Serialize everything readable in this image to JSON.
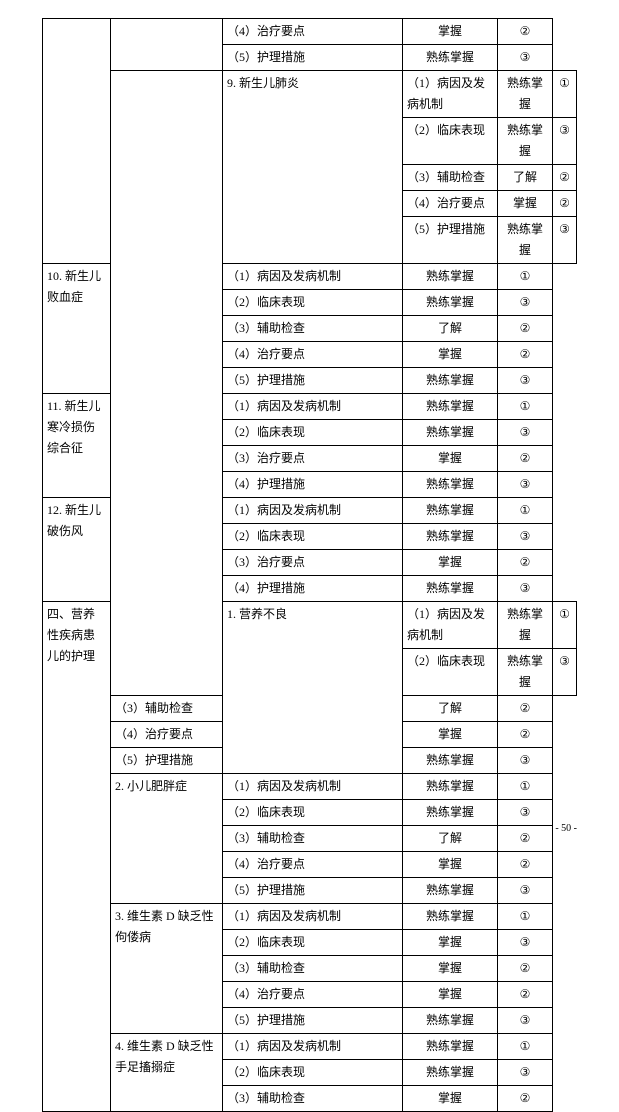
{
  "footer": "- 50 -",
  "table": {
    "rows": [
      {
        "c1": "",
        "c2": "",
        "c3": "（4）治疗要点",
        "c4": "掌握",
        "c5": "②",
        "startC1": true,
        "startC2": true,
        "spanC1": 7,
        "spanC2": 2
      },
      {
        "c3": "（5）护理措施",
        "c4": "熟练掌握",
        "c5": "③"
      },
      {
        "c2": "9. 新生儿肺炎",
        "c3": "（1）病因及发病机制",
        "c4": "熟练掌握",
        "c5": "①",
        "startC1": true,
        "spanC1": 20,
        "c1": "",
        "startC2": true,
        "spanC2": 5
      },
      {
        "c3": "（2）临床表现",
        "c4": "熟练掌握",
        "c5": "③"
      },
      {
        "c3": "（3）辅助检查",
        "c4": "了解",
        "c5": "②"
      },
      {
        "c3": "（4）治疗要点",
        "c4": "掌握",
        "c5": "②"
      },
      {
        "c3": "（5）护理措施",
        "c4": "熟练掌握",
        "c5": "③"
      },
      {
        "c2": "10. 新生儿败血症",
        "c3": "（1）病因及发病机制",
        "c4": "熟练掌握",
        "c5": "①",
        "startC2": true,
        "spanC2": 5
      },
      {
        "c3": "（2）临床表现",
        "c4": "熟练掌握",
        "c5": "③"
      },
      {
        "c3": "（3）辅助检查",
        "c4": "了解",
        "c5": "②"
      },
      {
        "c3": "（4）治疗要点",
        "c4": "掌握",
        "c5": "②"
      },
      {
        "c3": "（5）护理措施",
        "c4": "熟练掌握",
        "c5": "③"
      },
      {
        "c2": "11. 新生儿寒冷损伤综合征",
        "c3": "（1）病因及发病机制",
        "c4": "熟练掌握",
        "c5": "①",
        "startC2": true,
        "spanC2": 4
      },
      {
        "c3": "（2）临床表现",
        "c4": "熟练掌握",
        "c5": "③"
      },
      {
        "c3": "（3）治疗要点",
        "c4": "掌握",
        "c5": "②"
      },
      {
        "c3": "（4）护理措施",
        "c4": "熟练掌握",
        "c5": "③"
      },
      {
        "c2": "12. 新生儿破伤风",
        "c3": "（1）病因及发病机制",
        "c4": "熟练掌握",
        "c5": "①",
        "startC2": true,
        "spanC2": 4
      },
      {
        "c3": "（2）临床表现",
        "c4": "熟练掌握",
        "c5": "③"
      },
      {
        "c3": "（3）治疗要点",
        "c4": "掌握",
        "c5": "②"
      },
      {
        "c3": "（4）护理措施",
        "c4": "熟练掌握",
        "c5": "③"
      },
      {
        "c1": "四、营养性疾病患儿的护理",
        "c2": "1. 营养不良",
        "c3": "（1）病因及发病机制",
        "c4": "熟练掌握",
        "c5": "①",
        "startC1": true,
        "spanC1": 18,
        "startC2": true,
        "spanC2": 5
      },
      {
        "c3": "（2）临床表现",
        "c4": "熟练掌握",
        "c5": "③"
      },
      {
        "c3": "（3）辅助检查",
        "c4": "了解",
        "c5": "②"
      },
      {
        "c3": "（4）治疗要点",
        "c4": "掌握",
        "c5": "②"
      },
      {
        "c3": "（5）护理措施",
        "c4": "熟练掌握",
        "c5": "③"
      },
      {
        "c2": "2. 小儿肥胖症",
        "c3": "（1）病因及发病机制",
        "c4": "熟练掌握",
        "c5": "①",
        "startC2": true,
        "spanC2": 5
      },
      {
        "c3": "（2）临床表现",
        "c4": "熟练掌握",
        "c5": "③"
      },
      {
        "c3": "（3）辅助检查",
        "c4": "了解",
        "c5": "②"
      },
      {
        "c3": "（4）治疗要点",
        "c4": "掌握",
        "c5": "②"
      },
      {
        "c3": "（5）护理措施",
        "c4": "熟练掌握",
        "c5": "③"
      },
      {
        "c2": "3. 维生素 D 缺乏性佝偻病",
        "c3": "（1）病因及发病机制",
        "c4": "熟练掌握",
        "c5": "①",
        "startC2": true,
        "spanC2": 5
      },
      {
        "c3": "（2）临床表现",
        "c4": "掌握",
        "c5": "③"
      },
      {
        "c3": "（3）辅助检查",
        "c4": "掌握",
        "c5": "②"
      },
      {
        "c3": "（4）治疗要点",
        "c4": "掌握",
        "c5": "②"
      },
      {
        "c3": "（5）护理措施",
        "c4": "熟练掌握",
        "c5": "③"
      },
      {
        "c2": "4. 维生素 D 缺乏性手足搐搦症",
        "c3": "（1）病因及发病机制",
        "c4": "熟练掌握",
        "c5": "①",
        "startC2": true,
        "spanC2": 3
      },
      {
        "c3": "（2）临床表现",
        "c4": "熟练掌握",
        "c5": "③"
      },
      {
        "c3": "（3）辅助检查",
        "c4": "掌握",
        "c5": "②"
      }
    ]
  }
}
